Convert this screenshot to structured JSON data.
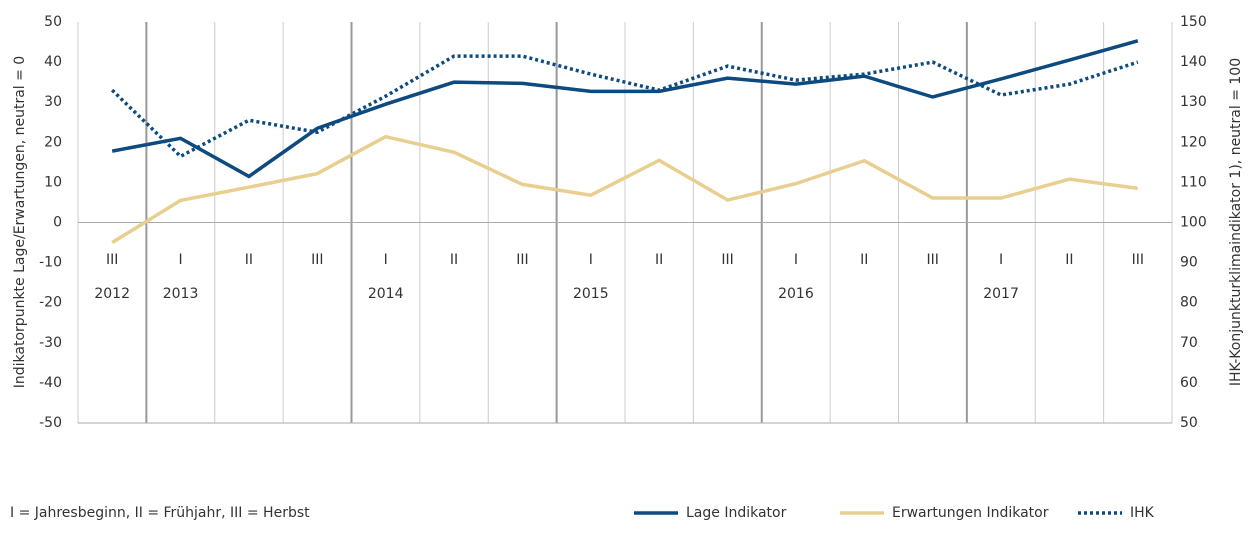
{
  "chart_data": {
    "type": "line",
    "categories": [
      "III",
      "I",
      "II",
      "III",
      "I",
      "II",
      "III",
      "I",
      "II",
      "III",
      "I",
      "II",
      "III",
      "I",
      "II",
      "III"
    ],
    "years": [
      "2012",
      "2013",
      null,
      null,
      "2014",
      null,
      null,
      "2015",
      null,
      null,
      "2016",
      null,
      null,
      "2017",
      null,
      null
    ],
    "ylabel": "Indikatorpunkte Lage/Erwartungen, neutral = 0",
    "y2label": "IHK-Konjunkturklimaindikator 1), neutral = 100",
    "note": "I = Jahresbeginn, II = Frühjahr, III = Herbst",
    "ylim": [
      -50,
      50
    ],
    "yticks": [
      -50,
      -40,
      -30,
      -20,
      -10,
      0,
      10,
      20,
      30,
      40,
      50
    ],
    "y2lim": [
      50,
      150
    ],
    "y2ticks": [
      50,
      60,
      70,
      80,
      90,
      100,
      110,
      120,
      130,
      140,
      150
    ],
    "series": [
      {
        "name": "Lage Indikator",
        "color": "#0d4a7f",
        "style": "solid",
        "values": [
          17.8,
          21,
          11.5,
          23.5,
          29.5,
          35,
          34.7,
          32.7,
          32.7,
          36,
          34.5,
          36.5,
          31.3,
          35.8,
          40.5,
          45.3
        ]
      },
      {
        "name": "Erwartungen Indikator",
        "color": "#e8cf8f",
        "style": "solid",
        "values": [
          -5,
          5.5,
          8.8,
          12.2,
          21.4,
          17.5,
          9.5,
          6.8,
          15.5,
          5.6,
          9.7,
          15.4,
          6.1,
          6.1,
          10.8,
          8.5
        ]
      },
      {
        "name": "IHK",
        "color": "#0d4a7f",
        "style": "dotted",
        "axis": "y2",
        "values": [
          133,
          116.5,
          125.5,
          122.5,
          131.5,
          141.5,
          141.5,
          137,
          133,
          139,
          135.5,
          137,
          140,
          131.8,
          134.5,
          140
        ]
      }
    ]
  }
}
